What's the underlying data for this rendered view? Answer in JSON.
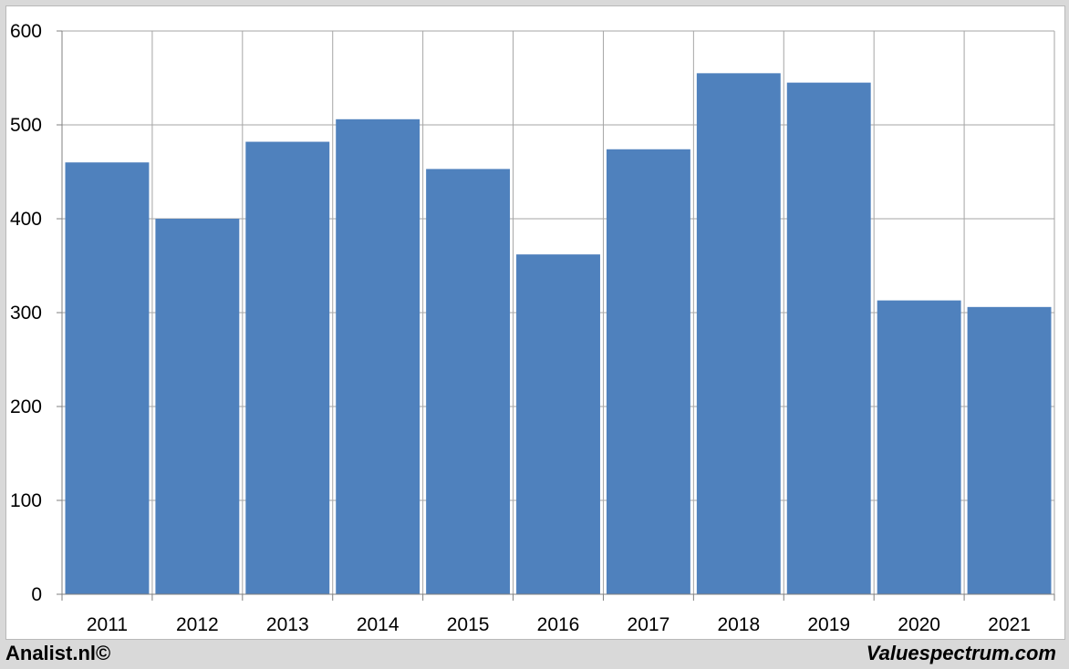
{
  "chart_data": {
    "type": "bar",
    "categories": [
      "2011",
      "2012",
      "2013",
      "2014",
      "2015",
      "2016",
      "2017",
      "2018",
      "2019",
      "2020",
      "2021"
    ],
    "values": [
      460,
      400,
      482,
      506,
      453,
      362,
      474,
      555,
      545,
      313,
      306
    ],
    "title": "",
    "xlabel": "",
    "ylabel": "",
    "ylim": [
      0,
      600
    ],
    "yticks": [
      "0",
      "100",
      "200",
      "300",
      "400",
      "500",
      "600"
    ],
    "grid": true,
    "legend": "none",
    "bar_color": "#4f81bd",
    "grid_color": "#a6a6a6"
  },
  "footer": {
    "left_text": "Analist.nl©",
    "right_text": "Valuespectrum.com"
  }
}
